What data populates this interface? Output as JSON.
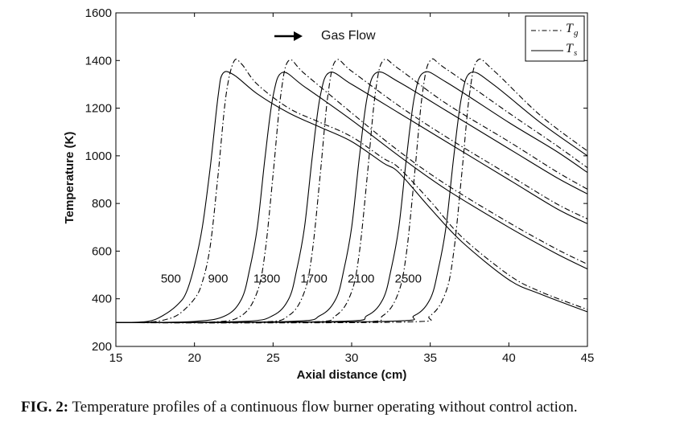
{
  "chart_data": {
    "type": "line",
    "xlabel": "Axial distance (cm)",
    "ylabel": "Temperature (K)",
    "xlim": [
      15,
      45
    ],
    "ylim": [
      200,
      1600
    ],
    "xticks": [
      "15",
      "20",
      "25",
      "30",
      "35",
      "40",
      "45"
    ],
    "yticks": [
      "200",
      "400",
      "600",
      "800",
      "1000",
      "1200",
      "1400",
      "1600"
    ],
    "grid": false,
    "legend": {
      "placement": "top-right",
      "entries": [
        {
          "symbol": "T",
          "subscript": "g",
          "line_style": "dashdot"
        },
        {
          "symbol": "T",
          "subscript": "s",
          "line_style": "solid"
        }
      ]
    },
    "annotation": "Gas Flow",
    "curve_labels": [
      "500",
      "900",
      "1300",
      "1700",
      "2100",
      "2500"
    ],
    "series": [
      {
        "label": "500",
        "curve": "Ts",
        "x": [
          15,
          17,
          18,
          19,
          19.5,
          20,
          20.5,
          21,
          21.5,
          21.8,
          22.5,
          24,
          26,
          28,
          30,
          32,
          33,
          35,
          37,
          40,
          42,
          45
        ],
        "y": [
          300,
          305,
          330,
          380,
          430,
          540,
          700,
          950,
          1250,
          1345,
          1340,
          1260,
          1180,
          1120,
          1060,
          970,
          930,
          780,
          640,
          480,
          420,
          345
        ]
      },
      {
        "label": "500",
        "curve": "Tg",
        "x": [
          15,
          17,
          18,
          19,
          20,
          20.5,
          21,
          21.5,
          22,
          22.5,
          23,
          24,
          26,
          28,
          30,
          32,
          33,
          35,
          37,
          40,
          42,
          45
        ],
        "y": [
          300,
          302,
          310,
          335,
          400,
          470,
          620,
          920,
          1250,
          1395,
          1385,
          1300,
          1200,
          1140,
          1080,
          990,
          950,
          810,
          660,
          500,
          430,
          355
        ]
      },
      {
        "label": "900",
        "curve": "Ts",
        "x": [
          15,
          20,
          22,
          23,
          23.5,
          24,
          24.5,
          25,
          25.6,
          27,
          30,
          33,
          36,
          40,
          43,
          45
        ],
        "y": [
          300,
          305,
          330,
          400,
          520,
          700,
          1000,
          1250,
          1350,
          1290,
          1150,
          1000,
          860,
          700,
          590,
          525
        ]
      },
      {
        "label": "900",
        "curve": "Tg",
        "x": [
          15,
          21,
          23,
          24,
          24.5,
          25,
          25.5,
          26,
          27,
          30,
          33,
          36,
          40,
          43,
          45
        ],
        "y": [
          300,
          302,
          330,
          430,
          600,
          920,
          1260,
          1400,
          1345,
          1180,
          1020,
          880,
          720,
          610,
          545
        ]
      },
      {
        "label": "1300",
        "curve": "Ts",
        "x": [
          15,
          23,
          25,
          26,
          26.5,
          27,
          27.5,
          28,
          28.6,
          30,
          33,
          36,
          40,
          43,
          45
        ],
        "y": [
          300,
          305,
          330,
          400,
          520,
          700,
          1000,
          1250,
          1350,
          1300,
          1180,
          1060,
          900,
          780,
          715
        ]
      },
      {
        "label": "1300",
        "curve": "Tg",
        "x": [
          15,
          24,
          26,
          27,
          27.5,
          28,
          28.5,
          29,
          30,
          33,
          36,
          40,
          43,
          45
        ],
        "y": [
          300,
          302,
          330,
          430,
          600,
          920,
          1260,
          1400,
          1355,
          1210,
          1080,
          920,
          800,
          735
        ]
      },
      {
        "label": "1700",
        "curve": "Ts",
        "x": [
          15,
          26,
          28,
          29,
          29.5,
          30,
          30.5,
          31,
          31.6,
          33,
          36,
          40,
          43,
          45
        ],
        "y": [
          300,
          305,
          330,
          400,
          520,
          700,
          1000,
          1250,
          1350,
          1310,
          1190,
          1030,
          910,
          840
        ]
      },
      {
        "label": "1700",
        "curve": "Tg",
        "x": [
          15,
          27,
          29,
          30,
          30.5,
          31,
          31.5,
          32,
          33,
          36,
          40,
          43,
          45
        ],
        "y": [
          300,
          302,
          330,
          430,
          600,
          920,
          1260,
          1400,
          1365,
          1220,
          1060,
          935,
          860
        ]
      },
      {
        "label": "2100",
        "curve": "Ts",
        "x": [
          15,
          29,
          31,
          32,
          32.5,
          33,
          33.5,
          34,
          34.6,
          36,
          40,
          43,
          45
        ],
        "y": [
          300,
          305,
          330,
          400,
          520,
          700,
          1000,
          1250,
          1350,
          1310,
          1140,
          1020,
          930
        ]
      },
      {
        "label": "2100",
        "curve": "Tg",
        "x": [
          15,
          30,
          32,
          33,
          33.5,
          34,
          34.5,
          35,
          36,
          40,
          43,
          45
        ],
        "y": [
          300,
          302,
          330,
          430,
          600,
          920,
          1260,
          1400,
          1365,
          1180,
          1045,
          950
        ]
      },
      {
        "label": "2500",
        "curve": "Ts",
        "x": [
          15,
          32,
          34,
          35,
          35.5,
          36,
          36.5,
          37,
          37.6,
          39,
          42,
          45
        ],
        "y": [
          300,
          305,
          330,
          400,
          520,
          700,
          1000,
          1250,
          1350,
          1300,
          1140,
          1000
        ]
      },
      {
        "label": "2500",
        "curve": "Tg",
        "x": [
          15,
          33,
          35,
          36,
          36.5,
          37,
          37.5,
          38,
          39,
          42,
          45
        ],
        "y": [
          300,
          302,
          330,
          430,
          600,
          920,
          1260,
          1400,
          1360,
          1170,
          1020
        ]
      }
    ]
  },
  "caption": {
    "label": "FIG. 2:",
    "text": " Temperature profiles of a continuous flow burner operating without control action."
  }
}
